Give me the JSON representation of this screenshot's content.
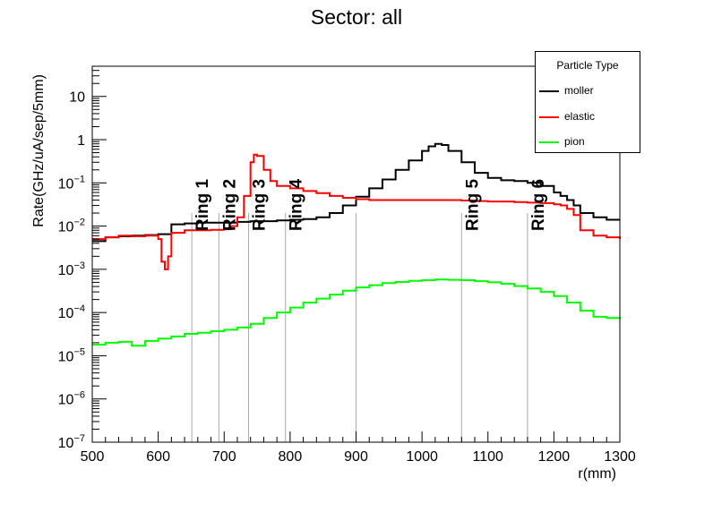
{
  "chart_data": {
    "type": "line",
    "title": "Sector: all",
    "xlabel": "r(mm)",
    "ylabel": "Rate(GHz/uA/sep/5mm)",
    "xlim": [
      500,
      1300
    ],
    "ylim": [
      1e-07,
      50
    ],
    "yscale": "log",
    "x_ticks": [
      "500",
      "600",
      "700",
      "800",
      "900",
      "1000",
      "1100",
      "1200",
      "1300"
    ],
    "y_ticks": [
      {
        "base": "10",
        "exp": "−7"
      },
      {
        "base": "10",
        "exp": "−6"
      },
      {
        "base": "10",
        "exp": "−5"
      },
      {
        "base": "10",
        "exp": "−4"
      },
      {
        "base": "10",
        "exp": "−3"
      },
      {
        "base": "10",
        "exp": "−2"
      },
      {
        "base": "10",
        "exp": "−1"
      },
      {
        "base": "1",
        "exp": ""
      },
      {
        "base": "10",
        "exp": ""
      }
    ],
    "legend": {
      "title": "Particle Type",
      "position": "top-right"
    },
    "series": [
      {
        "name": "moller",
        "color": "#000000",
        "x": [
          500,
          520,
          540,
          560,
          580,
          600,
          605,
          610,
          615,
          620,
          640,
          660,
          680,
          700,
          720,
          740,
          760,
          780,
          800,
          820,
          840,
          860,
          880,
          900,
          920,
          940,
          960,
          980,
          1000,
          1010,
          1020,
          1030,
          1040,
          1060,
          1080,
          1100,
          1120,
          1140,
          1160,
          1180,
          1200,
          1210,
          1220,
          1230,
          1240,
          1260,
          1280,
          1300
        ],
        "y": [
          0.0045,
          0.0055,
          0.0058,
          0.006,
          0.0062,
          0.0065,
          0.0065,
          0.0065,
          0.0065,
          0.011,
          0.0115,
          0.012,
          0.012,
          0.012,
          0.0125,
          0.013,
          0.013,
          0.0135,
          0.014,
          0.0145,
          0.016,
          0.02,
          0.03,
          0.048,
          0.075,
          0.12,
          0.2,
          0.33,
          0.55,
          0.7,
          0.8,
          0.75,
          0.55,
          0.3,
          0.17,
          0.13,
          0.115,
          0.11,
          0.1,
          0.085,
          0.06,
          0.05,
          0.04,
          0.03,
          0.02,
          0.016,
          0.014,
          0.014
        ]
      },
      {
        "name": "elastic",
        "color": "#ff0000",
        "x": [
          500,
          520,
          540,
          560,
          580,
          600,
          605,
          610,
          615,
          620,
          640,
          660,
          680,
          700,
          710,
          720,
          730,
          740,
          745,
          750,
          760,
          770,
          780,
          800,
          820,
          840,
          860,
          880,
          900,
          920,
          940,
          960,
          980,
          1000,
          1020,
          1040,
          1060,
          1080,
          1100,
          1120,
          1140,
          1160,
          1180,
          1200,
          1210,
          1220,
          1230,
          1240,
          1260,
          1280,
          1300
        ],
        "y": [
          0.005,
          0.0055,
          0.006,
          0.0058,
          0.006,
          0.005,
          0.0015,
          0.001,
          0.002,
          0.007,
          0.008,
          0.008,
          0.0082,
          0.0085,
          0.01,
          0.016,
          0.05,
          0.3,
          0.45,
          0.42,
          0.2,
          0.11,
          0.085,
          0.075,
          0.065,
          0.058,
          0.05,
          0.045,
          0.042,
          0.04,
          0.04,
          0.04,
          0.04,
          0.04,
          0.04,
          0.04,
          0.039,
          0.038,
          0.037,
          0.037,
          0.036,
          0.035,
          0.034,
          0.032,
          0.03,
          0.025,
          0.018,
          0.008,
          0.006,
          0.0055,
          0.005
        ]
      },
      {
        "name": "pion",
        "color": "#00ff00",
        "x": [
          500,
          520,
          540,
          560,
          580,
          600,
          620,
          640,
          660,
          680,
          700,
          720,
          740,
          760,
          780,
          800,
          820,
          840,
          860,
          880,
          900,
          920,
          940,
          960,
          980,
          1000,
          1020,
          1040,
          1060,
          1080,
          1100,
          1120,
          1140,
          1160,
          1180,
          1200,
          1220,
          1240,
          1260,
          1280,
          1300
        ],
        "y": [
          1.8e-05,
          2e-05,
          2.1e-05,
          1.7e-05,
          2.2e-05,
          2.5e-05,
          2.8e-05,
          3.2e-05,
          3.4e-05,
          3.7e-05,
          4e-05,
          4.5e-05,
          5.5e-05,
          7.5e-05,
          0.0001,
          0.00013,
          0.00017,
          0.00021,
          0.00026,
          0.00032,
          0.00038,
          0.00043,
          0.00048,
          0.00051,
          0.00054,
          0.00056,
          0.00058,
          0.00057,
          0.00056,
          0.00053,
          0.0005,
          0.00046,
          0.00041,
          0.00036,
          0.0003,
          0.00024,
          0.00017,
          0.00011,
          8e-05,
          7.5e-05,
          7e-05
        ]
      }
    ],
    "annotations": [
      {
        "label": "Ring 1",
        "x": 651
      },
      {
        "label": "Ring 2",
        "x": 692
      },
      {
        "label": "Ring 3",
        "x": 737
      },
      {
        "label": "Ring 4",
        "x": 793
      },
      {
        "label": "Ring 5",
        "x": 1060
      },
      {
        "label": "Ring 6",
        "x": 1160
      }
    ],
    "annotation_line_x": [
      651,
      692,
      737,
      793,
      900,
      1060,
      1160
    ],
    "annotation_color": "#c8c0b8"
  }
}
